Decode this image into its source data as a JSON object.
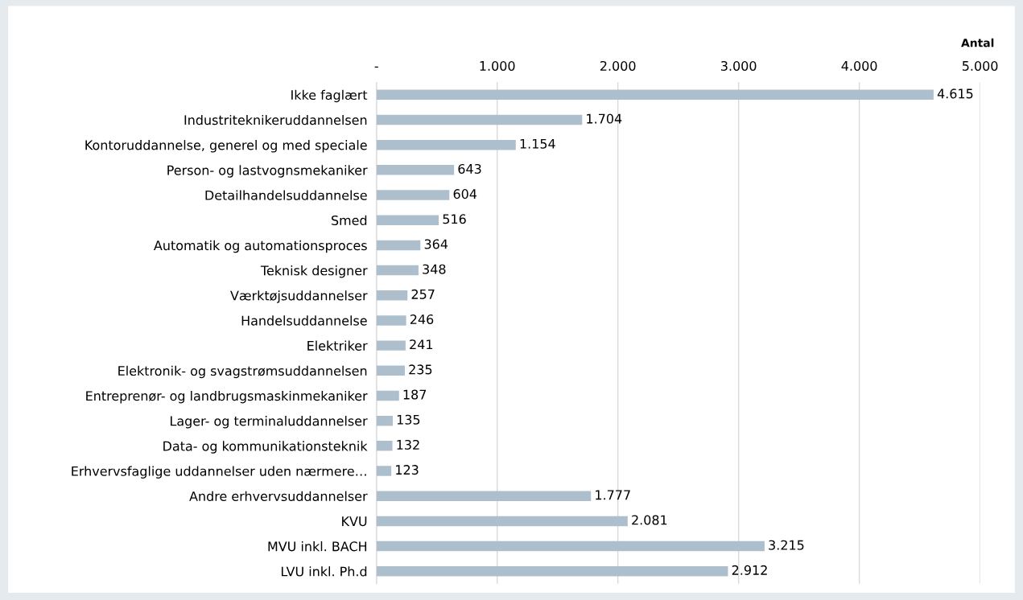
{
  "chart_data": {
    "type": "bar",
    "orientation": "horizontal",
    "xlabel": "Antal",
    "categories": [
      "Ikke faglært",
      "Industriteknikeruddannelsen",
      "Kontoruddannelse, generel og med speciale",
      "Person- og lastvognsmekaniker",
      "Detailhandelsuddannelse",
      "Smed",
      "Automatik og automationsproces",
      "Teknisk designer",
      "Værktøjsuddannelser",
      "Handelsuddannelse",
      "Elektriker",
      "Elektronik- og svagstrømsuddannelsen",
      "Entreprenør- og landbrugsmaskinmekaniker",
      "Lager- og terminaluddannelser",
      "Data- og kommunikationsteknik",
      "Erhvervsfaglige uddannelser uden nærmere…",
      "Andre erhvervsuddannelser",
      "KVU",
      "MVU inkl. BACH",
      "LVU inkl. Ph.d"
    ],
    "values": [
      4615,
      1704,
      1154,
      643,
      604,
      516,
      364,
      348,
      257,
      246,
      241,
      235,
      187,
      135,
      132,
      123,
      1777,
      2081,
      3215,
      2912
    ],
    "value_labels": [
      "4.615",
      "1.704",
      "1.154",
      "643",
      "604",
      "516",
      "364",
      "348",
      "257",
      "246",
      "241",
      "235",
      "187",
      "135",
      "132",
      "123",
      "1.777",
      "2.081",
      "3.215",
      "2.912"
    ],
    "color": "#adbfcc",
    "xlim": [
      0,
      5000
    ],
    "xticks": [
      {
        "value": 0,
        "label": "-"
      },
      {
        "value": 1000,
        "label": "1.000"
      },
      {
        "value": 2000,
        "label": "2.000"
      },
      {
        "value": 3000,
        "label": "3.000"
      },
      {
        "value": 4000,
        "label": "4.000"
      },
      {
        "value": 5000,
        "label": "5.000"
      }
    ],
    "grid": "x"
  }
}
